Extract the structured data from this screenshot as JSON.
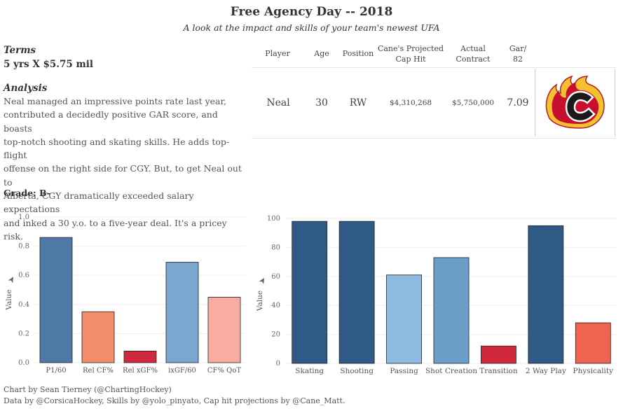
{
  "header": {
    "title": "Free Agency Day -- 2018",
    "subtitle": "A look at the impact and skills of your team's newest UFA"
  },
  "terms": {
    "heading": "Terms",
    "value": "5 yrs X $5.75 mil"
  },
  "analysis": {
    "heading": "Analysis",
    "lines": [
      "Neal managed an impressive points rate last year,",
      "contributed a decidedly positive GAR score, and boasts",
      "top-notch shooting and skating skills. He adds top-flight",
      "offense on the right side for CGY. But, to get Neal out to",
      "Alberta, CGY dramatically exceeded salary expectations",
      "and inked a 30 y.o. to a five-year deal. It's a pricey risk."
    ]
  },
  "grade": "Grade: B-",
  "player_table": {
    "headers": {
      "player": "Player",
      "age": "Age",
      "position": "Position",
      "cap_hit_1": "Cane's Projected",
      "cap_hit_2": "Cap Hit",
      "contract_1": "Actual",
      "contract_2": "Contract",
      "gar_1": "Gar/",
      "gar_2": "82"
    },
    "row": {
      "player": "Neal",
      "age": "30",
      "position": "RW",
      "cap_hit": "$4,310,268",
      "contract": "$5,750,000",
      "gar": "7.09"
    },
    "logo": "calgary-flames-logo"
  },
  "chart_data": [
    {
      "type": "bar",
      "ylabel": "Value",
      "ylim": [
        0,
        1.0
      ],
      "yticks": [
        "0.0",
        "0.2",
        "0.4",
        "0.6",
        "0.8",
        "1.0"
      ],
      "categories": [
        "P1/60",
        "Rel CF%",
        "Rel xGF%",
        "ixGF/60",
        "CF% QoT"
      ],
      "values": [
        0.86,
        0.35,
        0.08,
        0.69,
        0.45
      ],
      "colors": [
        "#4e79a7",
        "#f28e6b",
        "#d0283c",
        "#7ba6cf",
        "#f9ada0"
      ],
      "grid": true
    },
    {
      "type": "bar",
      "ylabel": "Value",
      "ylim": [
        0,
        100
      ],
      "yticks": [
        "0",
        "20",
        "40",
        "60",
        "80",
        "100"
      ],
      "categories": [
        "Skating",
        "Shooting",
        "Passing",
        "Shot Creation",
        "Transition",
        "2 Way Play",
        "Physicality"
      ],
      "values": [
        98,
        98,
        61,
        73,
        12,
        95,
        28
      ],
      "colors": [
        "#2f5a86",
        "#2f5a86",
        "#8ebae0",
        "#6a9ec9",
        "#d0283c",
        "#2f5a86",
        "#ee6450"
      ],
      "grid": true
    }
  ],
  "footer": {
    "line1": "Chart by Sean Tierney (@ChartingHockey)",
    "line2": "Data by @CorsicaHockey, Skills by @yolo_pinyato, Cap hit projections by @Cane_Matt."
  }
}
